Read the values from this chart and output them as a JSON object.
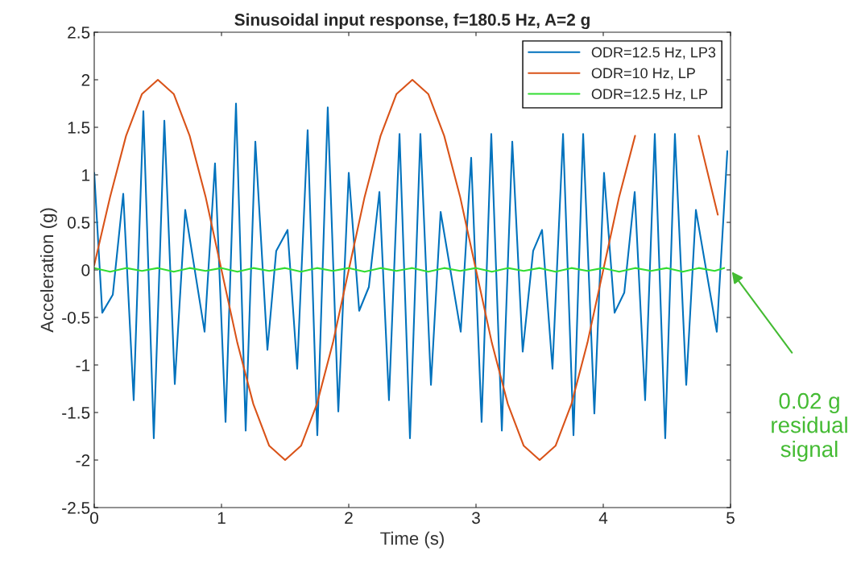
{
  "chart_data": {
    "type": "line",
    "title": "Sinusoidal input response, f=180.5 Hz, A=2 g",
    "xlabel": "Time (s)",
    "ylabel": "Acceleration (g)",
    "xlim": [
      0,
      5
    ],
    "xticks": [
      0,
      1,
      2,
      3,
      4,
      5
    ],
    "ylim": [
      -2.5,
      2.5
    ],
    "yticks": [
      -2.5,
      -2,
      -1.5,
      -1,
      -0.5,
      0,
      0.5,
      1,
      1.5,
      2,
      2.5
    ],
    "grid": false,
    "legend": "top right",
    "marker": "none",
    "line_style": "solid",
    "series": [
      {
        "name": "ODR=12.5 Hz, LP3",
        "color": "#0072bd",
        "x": [
          0,
          0.063,
          0.146,
          0.228,
          0.31,
          0.386,
          0.468,
          0.551,
          0.633,
          0.715,
          0.867,
          0.949,
          1.032,
          1.114,
          1.19,
          1.266,
          1.361,
          1.43,
          1.519,
          1.595,
          1.677,
          1.753,
          1.835,
          1.918,
          2.0,
          2.082,
          2.158,
          2.241,
          2.316,
          2.399,
          2.481,
          2.563,
          2.646,
          2.722,
          2.88,
          2.962,
          3.044,
          3.12,
          3.203,
          3.285,
          3.367,
          3.449,
          3.519,
          3.601,
          3.684,
          3.766,
          3.842,
          3.93,
          4.006,
          4.089,
          4.165,
          4.247,
          4.329,
          4.405,
          4.487,
          4.563,
          4.652,
          4.728,
          4.892,
          4.975
        ],
        "values": [
          1.02,
          -0.45,
          -0.26,
          0.8,
          -1.37,
          1.67,
          -1.77,
          1.57,
          -1.2,
          0.63,
          -0.65,
          1.12,
          -1.6,
          1.75,
          -1.69,
          1.35,
          -0.84,
          0.2,
          0.42,
          -1.04,
          1.47,
          -1.74,
          1.71,
          -1.49,
          1.02,
          -0.43,
          -0.18,
          0.82,
          -1.37,
          1.43,
          -1.77,
          1.43,
          -1.21,
          0.61,
          -0.65,
          1.18,
          -1.6,
          1.43,
          -1.69,
          1.35,
          -0.86,
          0.2,
          0.42,
          -1.04,
          1.43,
          -1.74,
          1.43,
          -1.51,
          1.02,
          -0.45,
          -0.24,
          0.82,
          -1.37,
          1.43,
          -1.77,
          1.43,
          -1.21,
          0.63,
          -0.65,
          1.25
        ]
      },
      {
        "name": "ODR=10 Hz, LP",
        "color": "#d95319",
        "x": [
          0,
          0.125,
          0.25,
          0.375,
          0.5,
          0.625,
          0.75,
          0.875,
          1.0,
          1.125,
          1.25,
          1.375,
          1.5,
          1.625,
          1.75,
          1.875,
          2.0,
          2.125,
          2.25,
          2.375,
          2.5,
          2.625,
          2.75,
          2.875,
          3.0,
          3.125,
          3.25,
          3.375,
          3.5,
          3.625,
          3.75,
          3.875,
          4.0,
          4.125,
          4.25,
          4.375,
          4.5,
          4.625,
          4.75,
          4.9
        ],
        "values": [
          0.05,
          0.77,
          1.41,
          1.85,
          2.0,
          1.85,
          1.41,
          0.77,
          0.0,
          -0.77,
          -1.41,
          -1.85,
          -2.0,
          -1.85,
          -1.41,
          -0.77,
          0.0,
          0.77,
          1.41,
          1.85,
          2.0,
          1.85,
          1.41,
          0.77,
          0.0,
          -0.77,
          -1.41,
          -1.85,
          -2.0,
          -1.85,
          -1.41,
          -0.77,
          0.0,
          0.77,
          1.41,
          null,
          null,
          null,
          1.41,
          0.58
        ]
      },
      {
        "name": "ODR=12.5 Hz, LP",
        "color": "#33dd33",
        "x": [
          0,
          0.125,
          0.25,
          0.375,
          0.5,
          0.625,
          0.75,
          0.875,
          1.0,
          1.125,
          1.25,
          1.375,
          1.5,
          1.625,
          1.75,
          1.875,
          2.0,
          2.125,
          2.25,
          2.375,
          2.5,
          2.625,
          2.75,
          2.875,
          3.0,
          3.125,
          3.25,
          3.375,
          3.5,
          3.625,
          3.75,
          3.875,
          4.0,
          4.125,
          4.25,
          4.375,
          4.5,
          4.625,
          4.75,
          4.875,
          4.95
        ],
        "values": [
          0.02,
          -0.02,
          0.02,
          -0.01,
          0.02,
          -0.02,
          0.02,
          -0.01,
          0.02,
          -0.02,
          0.02,
          -0.01,
          0.02,
          -0.02,
          0.02,
          -0.01,
          0.02,
          -0.02,
          0.02,
          -0.01,
          0.02,
          -0.02,
          0.02,
          -0.01,
          0.02,
          -0.02,
          0.02,
          -0.01,
          0.02,
          -0.02,
          0.02,
          -0.01,
          0.02,
          -0.02,
          0.02,
          -0.01,
          0.02,
          -0.02,
          0.02,
          -0.01,
          0.02
        ]
      }
    ],
    "annotations": [
      "0.02 g\nresidual\nsignal"
    ]
  }
}
